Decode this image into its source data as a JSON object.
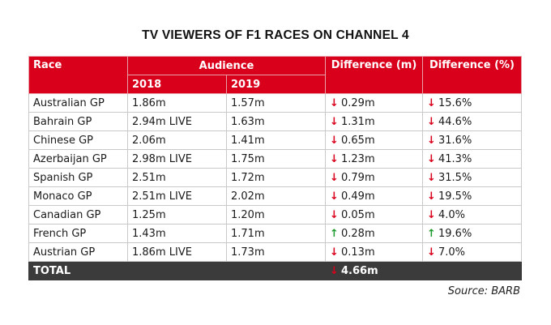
{
  "title": "TV VIEWERS OF F1 RACES ON CHANNEL 4",
  "table": {
    "headers": {
      "race": "Race",
      "audience": "Audience",
      "year_2018": "2018",
      "year_2019": "2019",
      "diff_m": "Difference (m)",
      "diff_pct": "Difference (%)"
    },
    "rows": [
      {
        "race": "Australian GP",
        "y2018": "1.86m",
        "y2019": "1.57m",
        "diff_m": "0.29m",
        "diff_pct": "15.6%",
        "trend": "down"
      },
      {
        "race": "Bahrain GP",
        "y2018": "2.94m LIVE",
        "y2019": "1.63m",
        "diff_m": "1.31m",
        "diff_pct": "44.6%",
        "trend": "down"
      },
      {
        "race": "Chinese GP",
        "y2018": "2.06m",
        "y2019": "1.41m",
        "diff_m": "0.65m",
        "diff_pct": "31.6%",
        "trend": "down"
      },
      {
        "race": "Azerbaijan GP",
        "y2018": "2.98m LIVE",
        "y2019": "1.75m",
        "diff_m": "1.23m",
        "diff_pct": "41.3%",
        "trend": "down"
      },
      {
        "race": "Spanish GP",
        "y2018": "2.51m",
        "y2019": "1.72m",
        "diff_m": "0.79m",
        "diff_pct": "31.5%",
        "trend": "down"
      },
      {
        "race": "Monaco GP",
        "y2018": "2.51m LIVE",
        "y2019": "2.02m",
        "diff_m": "0.49m",
        "diff_pct": "19.5%",
        "trend": "down"
      },
      {
        "race": "Canadian GP",
        "y2018": "1.25m",
        "y2019": "1.20m",
        "diff_m": "0.05m",
        "diff_pct": "4.0%",
        "trend": "down"
      },
      {
        "race": "French GP",
        "y2018": "1.43m",
        "y2019": "1.71m",
        "diff_m": "0.28m",
        "diff_pct": "19.6%",
        "trend": "up"
      },
      {
        "race": "Austrian GP",
        "y2018": "1.86m LIVE",
        "y2019": "1.73m",
        "diff_m": "0.13m",
        "diff_pct": "7.0%",
        "trend": "down"
      }
    ],
    "total": {
      "label": "TOTAL",
      "diff_m": "4.66m",
      "trend": "down"
    }
  },
  "colors": {
    "header_red": "#d9001b",
    "total_dark": "#3b3b3b",
    "down_arrow": "#d9001b",
    "up_arrow": "#1e9a2e"
  },
  "icons": {
    "down": "down-arrow-icon",
    "up": "up-arrow-icon"
  },
  "source": "Source: BARB"
}
